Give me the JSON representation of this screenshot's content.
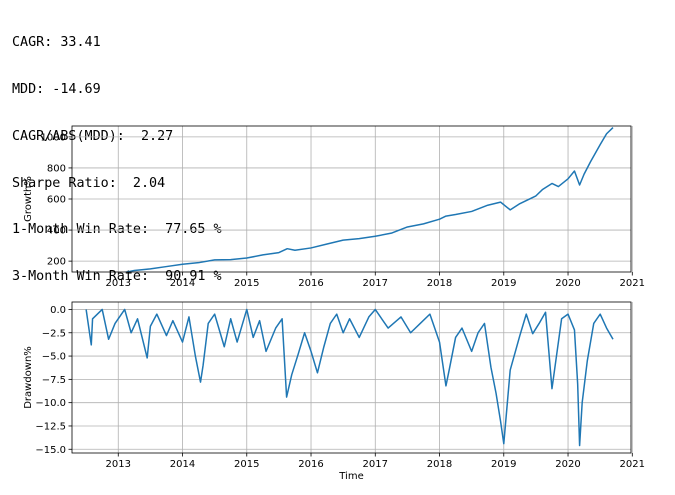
{
  "stats": {
    "lines": [
      "CAGR: 33.41",
      "MDD: -14.69",
      "CAGR/ABS(MDD):  2.27",
      "Sharpe Ratio:  2.04",
      "1-Month Win Rate:  77.65 %",
      "3-Month Win Rate:  90.91 %"
    ]
  },
  "chart_data": [
    {
      "type": "line",
      "ylabel": "Growth%",
      "xlabel": "",
      "xlim": [
        2012.28,
        2020.98
      ],
      "ylim": [
        130,
        1070
      ],
      "x_ticks": [
        2013,
        2014,
        2015,
        2016,
        2017,
        2018,
        2019,
        2020,
        2021
      ],
      "x_tick_labels": [
        "2013",
        "2014",
        "2015",
        "2016",
        "2017",
        "2018",
        "2019",
        "2020",
        "2021"
      ],
      "y_ticks": [
        200,
        400,
        600,
        800,
        1000
      ],
      "y_tick_labels": [
        "200",
        "400",
        "600",
        "800",
        "1000"
      ],
      "grid": true,
      "color": "#1f77b4",
      "x": [
        2012.5,
        2012.75,
        2013.0,
        2013.25,
        2013.5,
        2013.75,
        2014.0,
        2014.25,
        2014.5,
        2014.75,
        2015.0,
        2015.25,
        2015.5,
        2015.63,
        2015.75,
        2016.0,
        2016.25,
        2016.5,
        2016.75,
        2017.0,
        2017.25,
        2017.5,
        2017.75,
        2018.0,
        2018.1,
        2018.25,
        2018.5,
        2018.75,
        2018.95,
        2019.1,
        2019.25,
        2019.5,
        2019.6,
        2019.75,
        2019.85,
        2020.0,
        2020.1,
        2020.18,
        2020.25,
        2020.35,
        2020.5,
        2020.6,
        2020.7
      ],
      "y": [
        100,
        110,
        118,
        140,
        150,
        165,
        180,
        190,
        208,
        210,
        220,
        240,
        255,
        280,
        270,
        285,
        310,
        335,
        345,
        360,
        380,
        420,
        440,
        470,
        490,
        500,
        520,
        560,
        580,
        530,
        570,
        620,
        660,
        700,
        680,
        730,
        780,
        690,
        760,
        840,
        950,
        1020,
        1060
      ]
    },
    {
      "type": "area",
      "ylabel": "Drawdown%",
      "xlabel": "Time",
      "xlim": [
        2012.28,
        2020.98
      ],
      "ylim": [
        -15.4,
        0.8
      ],
      "x_ticks": [
        2013,
        2014,
        2015,
        2016,
        2017,
        2018,
        2019,
        2020,
        2021
      ],
      "x_tick_labels": [
        "2013",
        "2014",
        "2015",
        "2016",
        "2017",
        "2018",
        "2019",
        "2020",
        "2021"
      ],
      "y_ticks": [
        0.0,
        -2.5,
        -5.0,
        -7.5,
        -10.0,
        -12.5,
        -15.0
      ],
      "y_tick_labels": [
        "0.0",
        "−2.5",
        "−5.0",
        "−7.5",
        "−10.0",
        "−12.5",
        "−15.0"
      ],
      "grid": true,
      "color": "#1f77b4",
      "x": [
        2012.5,
        2012.58,
        2012.6,
        2012.75,
        2012.85,
        2012.95,
        2013.1,
        2013.2,
        2013.3,
        2013.45,
        2013.5,
        2013.6,
        2013.75,
        2013.85,
        2014.0,
        2014.1,
        2014.2,
        2014.28,
        2014.32,
        2014.4,
        2014.5,
        2014.65,
        2014.75,
        2014.85,
        2015.0,
        2015.1,
        2015.2,
        2015.3,
        2015.45,
        2015.55,
        2015.62,
        2015.7,
        2015.8,
        2015.9,
        2016.0,
        2016.1,
        2016.2,
        2016.3,
        2016.4,
        2016.5,
        2016.6,
        2016.75,
        2016.9,
        2017.0,
        2017.2,
        2017.4,
        2017.55,
        2017.7,
        2017.85,
        2018.0,
        2018.1,
        2018.15,
        2018.25,
        2018.35,
        2018.5,
        2018.6,
        2018.7,
        2018.8,
        2018.88,
        2018.95,
        2019.0,
        2019.1,
        2019.25,
        2019.35,
        2019.45,
        2019.55,
        2019.65,
        2019.75,
        2019.82,
        2019.9,
        2020.0,
        2020.1,
        2020.15,
        2020.18,
        2020.22,
        2020.3,
        2020.4,
        2020.5,
        2020.6,
        2020.7
      ],
      "y": [
        0,
        -3.8,
        -1.0,
        0,
        -3.2,
        -1.5,
        0,
        -2.5,
        -1.0,
        -5.2,
        -1.8,
        -0.5,
        -2.8,
        -1.2,
        -3.5,
        -0.8,
        -5.0,
        -7.8,
        -6.0,
        -1.5,
        -0.5,
        -4.0,
        -1.0,
        -3.5,
        0,
        -3.0,
        -1.2,
        -4.5,
        -2.0,
        -1.0,
        -9.4,
        -7.0,
        -4.8,
        -2.5,
        -4.5,
        -6.8,
        -4.0,
        -1.5,
        -0.5,
        -2.5,
        -1.0,
        -3.0,
        -0.8,
        0,
        -2.0,
        -0.8,
        -2.5,
        -1.5,
        -0.5,
        -3.5,
        -8.2,
        -6.5,
        -3.0,
        -2.0,
        -4.5,
        -2.5,
        -1.5,
        -6.2,
        -9.0,
        -12.0,
        -14.4,
        -6.5,
        -2.8,
        -0.5,
        -2.6,
        -1.5,
        -0.3,
        -8.5,
        -5.0,
        -1.0,
        -0.5,
        -2.2,
        -8.0,
        -14.6,
        -10.0,
        -5.5,
        -1.5,
        -0.5,
        -2.0,
        -3.2
      ]
    }
  ]
}
